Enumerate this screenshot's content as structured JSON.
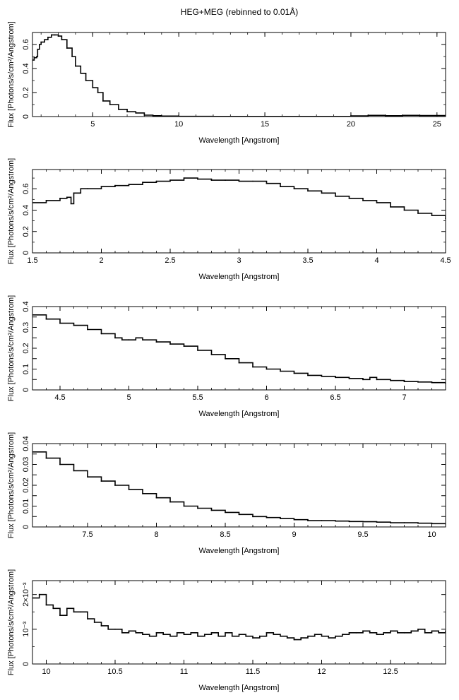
{
  "figure": {
    "title": "HEG+MEG (rebinned to 0.01Å)"
  },
  "chart_data": [
    {
      "type": "line",
      "xlabel": "Wavelength [Angstrom]",
      "ylabel": "Flux [Photons/s/cm²/Angstrom]",
      "xlim": [
        1.5,
        25.5
      ],
      "ylim": [
        0,
        0.7
      ],
      "xticks": [
        5,
        10,
        15,
        20,
        25
      ],
      "yticks": [
        0,
        0.2,
        0.4,
        0.6
      ],
      "yticks_minor": [
        0.1,
        0.3,
        0.5
      ],
      "ytick_labels": [
        "0",
        "0.2",
        "0.4",
        "0.6"
      ],
      "grid": false,
      "series": [
        {
          "x": [
            1.5,
            1.6,
            1.75,
            1.8,
            1.9,
            2.0,
            2.2,
            2.4,
            2.6,
            2.8,
            3.0,
            3.2,
            3.5,
            3.8,
            4.0,
            4.3,
            4.6,
            5.0,
            5.3,
            5.6,
            6.0,
            6.5,
            7.0,
            7.5,
            8.0,
            8.5,
            9.0,
            10.0,
            12.0,
            15.0,
            18.0,
            20.0,
            21.0,
            22.0,
            23.0,
            24.0,
            25.5
          ],
          "y": [
            0.47,
            0.49,
            0.5,
            0.56,
            0.6,
            0.62,
            0.64,
            0.66,
            0.68,
            0.68,
            0.67,
            0.64,
            0.57,
            0.5,
            0.42,
            0.36,
            0.3,
            0.24,
            0.2,
            0.13,
            0.1,
            0.06,
            0.04,
            0.03,
            0.012,
            0.007,
            0.004,
            0.002,
            0.001,
            0.001,
            0.001,
            0.006,
            0.01,
            0.007,
            0.01,
            0.008,
            0.01
          ]
        }
      ]
    },
    {
      "type": "line",
      "xlabel": "Wavelength [Angstrom]",
      "ylabel": "Flux [Photons/s/cm²/Angstrom]",
      "xlim": [
        1.5,
        4.5
      ],
      "ylim": [
        0,
        0.78
      ],
      "xticks": [
        1.5,
        2,
        2.5,
        3,
        3.5,
        4,
        4.5
      ],
      "yticks": [
        0,
        0.2,
        0.4,
        0.6
      ],
      "yticks_minor": [
        0.1,
        0.3,
        0.5,
        0.7
      ],
      "ytick_labels": [
        "0",
        "0.2",
        "0.4",
        "0.6"
      ],
      "grid": false,
      "series": [
        {
          "x": [
            1.5,
            1.6,
            1.7,
            1.75,
            1.78,
            1.8,
            1.85,
            1.9,
            2.0,
            2.1,
            2.2,
            2.3,
            2.4,
            2.5,
            2.6,
            2.7,
            2.8,
            2.9,
            3.0,
            3.1,
            3.2,
            3.3,
            3.4,
            3.5,
            3.6,
            3.7,
            3.8,
            3.9,
            4.0,
            4.1,
            4.2,
            4.3,
            4.4,
            4.5
          ],
          "y": [
            0.47,
            0.49,
            0.51,
            0.52,
            0.46,
            0.56,
            0.6,
            0.6,
            0.62,
            0.63,
            0.64,
            0.66,
            0.67,
            0.68,
            0.7,
            0.69,
            0.68,
            0.68,
            0.67,
            0.67,
            0.65,
            0.62,
            0.6,
            0.58,
            0.56,
            0.53,
            0.51,
            0.49,
            0.47,
            0.43,
            0.4,
            0.37,
            0.35,
            0.32
          ]
        }
      ]
    },
    {
      "type": "line",
      "xlabel": "Wavelength [Angstrom]",
      "ylabel": "Flux [Photons/s/cm²/Angstrom]",
      "xlim": [
        4.3,
        7.3
      ],
      "ylim": [
        0,
        0.4
      ],
      "xticks": [
        4.5,
        5,
        5.5,
        6,
        6.5,
        7
      ],
      "yticks": [
        0,
        0.05,
        0.1,
        0.15,
        0.2,
        0.25,
        0.3,
        0.35,
        0.4
      ],
      "ytick_labels": [
        "0",
        "",
        "0.1",
        "",
        "0.2",
        "",
        "0.3",
        "",
        "0.4"
      ],
      "grid": false,
      "series": [
        {
          "x": [
            4.3,
            4.4,
            4.5,
            4.6,
            4.7,
            4.8,
            4.9,
            4.95,
            5.0,
            5.05,
            5.1,
            5.2,
            5.3,
            5.4,
            5.5,
            5.6,
            5.7,
            5.8,
            5.9,
            6.0,
            6.1,
            6.2,
            6.3,
            6.4,
            6.5,
            6.6,
            6.7,
            6.75,
            6.8,
            6.9,
            7.0,
            7.1,
            7.2,
            7.3
          ],
          "y": [
            0.36,
            0.34,
            0.32,
            0.31,
            0.29,
            0.27,
            0.25,
            0.24,
            0.24,
            0.25,
            0.24,
            0.23,
            0.22,
            0.21,
            0.19,
            0.17,
            0.15,
            0.13,
            0.11,
            0.1,
            0.09,
            0.08,
            0.07,
            0.065,
            0.06,
            0.055,
            0.05,
            0.06,
            0.05,
            0.045,
            0.04,
            0.038,
            0.035,
            0.032
          ]
        }
      ]
    },
    {
      "type": "line",
      "xlabel": "Wavelength [Angstrom]",
      "ylabel": "Flux [Photons/s/cm²/Angstrom]",
      "xlim": [
        7.1,
        10.1
      ],
      "ylim": [
        0,
        0.04
      ],
      "xticks": [
        7.5,
        8,
        8.5,
        9,
        9.5,
        10
      ],
      "yticks": [
        0,
        0.005,
        0.01,
        0.015,
        0.02,
        0.025,
        0.03,
        0.035,
        0.04
      ],
      "ytick_labels": [
        "0",
        "",
        "0.01",
        "",
        "0.02",
        "",
        "0.03",
        "",
        "0.04"
      ],
      "grid": false,
      "series": [
        {
          "x": [
            7.1,
            7.2,
            7.3,
            7.4,
            7.5,
            7.6,
            7.7,
            7.8,
            7.9,
            8.0,
            8.1,
            8.2,
            8.3,
            8.4,
            8.5,
            8.6,
            8.7,
            8.8,
            8.9,
            9.0,
            9.1,
            9.2,
            9.3,
            9.4,
            9.5,
            9.6,
            9.7,
            9.8,
            9.9,
            10.0,
            10.1
          ],
          "y": [
            0.036,
            0.033,
            0.03,
            0.027,
            0.024,
            0.022,
            0.02,
            0.018,
            0.016,
            0.014,
            0.012,
            0.01,
            0.009,
            0.008,
            0.007,
            0.006,
            0.005,
            0.0045,
            0.004,
            0.0035,
            0.003,
            0.003,
            0.0028,
            0.0026,
            0.0025,
            0.0023,
            0.002,
            0.002,
            0.0018,
            0.0016,
            0.0015
          ]
        }
      ]
    },
    {
      "type": "line",
      "xlabel": "Wavelength [Angstrom]",
      "ylabel": "Flux [Photons/s/cm²/Angstrom]",
      "xlim": [
        9.9,
        12.9
      ],
      "ylim": [
        0,
        0.0024
      ],
      "xticks": [
        10,
        10.5,
        11,
        11.5,
        12,
        12.5
      ],
      "yticks": [
        0,
        0.001,
        0.002
      ],
      "yticks_minor": [
        0.0005,
        0.0015
      ],
      "ytick_labels": [
        "0",
        "10⁻³",
        "2×10⁻³"
      ],
      "grid": false,
      "series": [
        {
          "x": [
            9.9,
            9.95,
            10.0,
            10.05,
            10.1,
            10.15,
            10.2,
            10.25,
            10.3,
            10.35,
            10.4,
            10.45,
            10.5,
            10.55,
            10.6,
            10.65,
            10.7,
            10.75,
            10.8,
            10.85,
            10.9,
            10.95,
            11.0,
            11.05,
            11.1,
            11.15,
            11.2,
            11.25,
            11.3,
            11.35,
            11.4,
            11.45,
            11.5,
            11.55,
            11.6,
            11.65,
            11.7,
            11.75,
            11.8,
            11.85,
            11.9,
            11.95,
            12.0,
            12.05,
            12.1,
            12.15,
            12.2,
            12.25,
            12.3,
            12.35,
            12.4,
            12.45,
            12.5,
            12.55,
            12.6,
            12.65,
            12.7,
            12.75,
            12.8,
            12.85,
            12.9
          ],
          "y": [
            0.0019,
            0.002,
            0.0017,
            0.0016,
            0.0014,
            0.0016,
            0.0015,
            0.0015,
            0.0013,
            0.0012,
            0.0011,
            0.001,
            0.001,
            0.0009,
            0.00095,
            0.0009,
            0.00085,
            0.0008,
            0.0009,
            0.00085,
            0.0008,
            0.0009,
            0.00085,
            0.0009,
            0.0008,
            0.00085,
            0.0009,
            0.0008,
            0.0009,
            0.0008,
            0.00085,
            0.0008,
            0.00075,
            0.0008,
            0.0009,
            0.00085,
            0.0008,
            0.00075,
            0.0007,
            0.00075,
            0.0008,
            0.00085,
            0.0008,
            0.00075,
            0.0008,
            0.00085,
            0.0009,
            0.0009,
            0.00095,
            0.0009,
            0.00085,
            0.0009,
            0.00095,
            0.0009,
            0.0009,
            0.00095,
            0.001,
            0.0009,
            0.00095,
            0.0009,
            0.00095
          ]
        }
      ]
    }
  ]
}
